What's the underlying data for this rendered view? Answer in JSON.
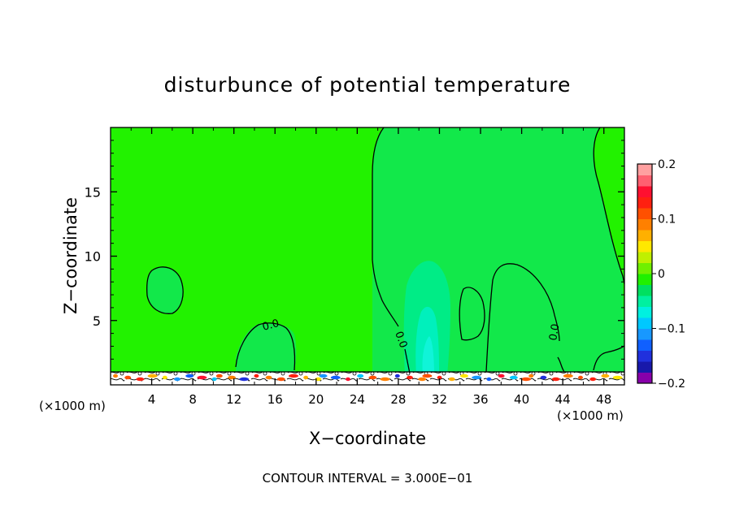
{
  "chart_data": {
    "type": "heatmap",
    "title": "disturbunce of potential temperature",
    "xlabel": "X−coordinate",
    "ylabel": "Z−coordinate",
    "x_unit_label": "(×1000 m)",
    "x_unit_label_right": "(×1000 m)",
    "xlim": [
      0,
      50
    ],
    "ylim": [
      0,
      20
    ],
    "x_ticks": [
      4,
      8,
      12,
      16,
      20,
      24,
      28,
      32,
      36,
      40,
      44,
      48
    ],
    "y_ticks": [
      5,
      10,
      15
    ],
    "contour_label": "0.0",
    "footer": "CONTOUR INTERVAL = 3.000E−01",
    "colorbar": {
      "min": -0.2,
      "max": 0.2,
      "tick_values": [
        0.2,
        0.1,
        0,
        -0.1,
        -0.2
      ],
      "tick_labels": [
        "0.2",
        "0.1",
        "0",
        "−0.1",
        "−0.2"
      ],
      "colors": [
        "#8800aa",
        "#1818aa",
        "#2030dd",
        "#1060ff",
        "#1898ff",
        "#00c8ff",
        "#00f0e0",
        "#00f0a0",
        "#00e060",
        "#20f000",
        "#70f000",
        "#c0f000",
        "#ffe800",
        "#ffb000",
        "#ff8000",
        "#ff5000",
        "#ff2010",
        "#ff1030",
        "#ff6070",
        "#ffa0a0"
      ]
    },
    "field_colors": {
      "background": "#22f200",
      "weak_negative": "#12e84a",
      "negative": "#00ec86",
      "strong_negative": "#00f0bc",
      "core": "#10f4d8"
    }
  }
}
